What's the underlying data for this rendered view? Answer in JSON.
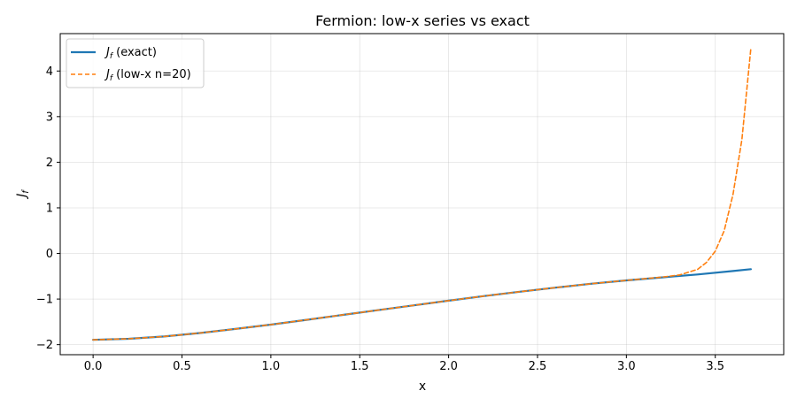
{
  "chart_data": {
    "type": "line",
    "title": "Fermion: low-x series vs exact",
    "xlabel": "x",
    "ylabel": "J_f",
    "xlim": [
      -0.185,
      3.885
    ],
    "ylim": [
      -2.22,
      4.82
    ],
    "xticks": [
      0.0,
      0.5,
      1.0,
      1.5,
      2.0,
      2.5,
      3.0,
      3.5
    ],
    "xtick_labels": [
      "0.0",
      "0.5",
      "1.0",
      "1.5",
      "2.0",
      "2.5",
      "3.0",
      "3.5"
    ],
    "yticks": [
      -2,
      -1,
      0,
      1,
      2,
      3,
      4
    ],
    "ytick_labels": [
      "−2",
      "−1",
      "0",
      "1",
      "2",
      "3",
      "4"
    ],
    "grid": true,
    "legend_position": "top-left",
    "series": [
      {
        "name": "J_f (exact)",
        "legend_main": "J",
        "legend_sub": "f",
        "legend_rest": " (exact)",
        "color": "#1f77b4",
        "style": "solid",
        "x": [
          0.0,
          0.2,
          0.4,
          0.6,
          0.8,
          1.0,
          1.2,
          1.4,
          1.6,
          1.8,
          2.0,
          2.2,
          2.4,
          2.6,
          2.8,
          3.0,
          3.2,
          3.4,
          3.6,
          3.7
        ],
        "y": [
          -1.894,
          -1.87,
          -1.82,
          -1.745,
          -1.655,
          -1.56,
          -1.455,
          -1.35,
          -1.245,
          -1.14,
          -1.035,
          -0.935,
          -0.84,
          -0.75,
          -0.665,
          -0.59,
          -0.525,
          -0.46,
          -0.385,
          -0.345
        ]
      },
      {
        "name": "J_f (low-x n=20)",
        "legend_main": "J",
        "legend_sub": "f",
        "legend_rest": " (low-x n=20)",
        "color": "#ff7f0e",
        "style": "dashed",
        "x": [
          0.0,
          0.2,
          0.4,
          0.6,
          0.8,
          1.0,
          1.2,
          1.4,
          1.6,
          1.8,
          2.0,
          2.2,
          2.4,
          2.6,
          2.8,
          3.0,
          3.2,
          3.3,
          3.4,
          3.45,
          3.5,
          3.55,
          3.6,
          3.65,
          3.7
        ],
        "y": [
          -1.894,
          -1.87,
          -1.82,
          -1.745,
          -1.655,
          -1.56,
          -1.455,
          -1.35,
          -1.245,
          -1.14,
          -1.035,
          -0.935,
          -0.84,
          -0.75,
          -0.665,
          -0.59,
          -0.52,
          -0.47,
          -0.35,
          -0.2,
          0.05,
          0.5,
          1.3,
          2.5,
          4.5
        ]
      }
    ]
  }
}
